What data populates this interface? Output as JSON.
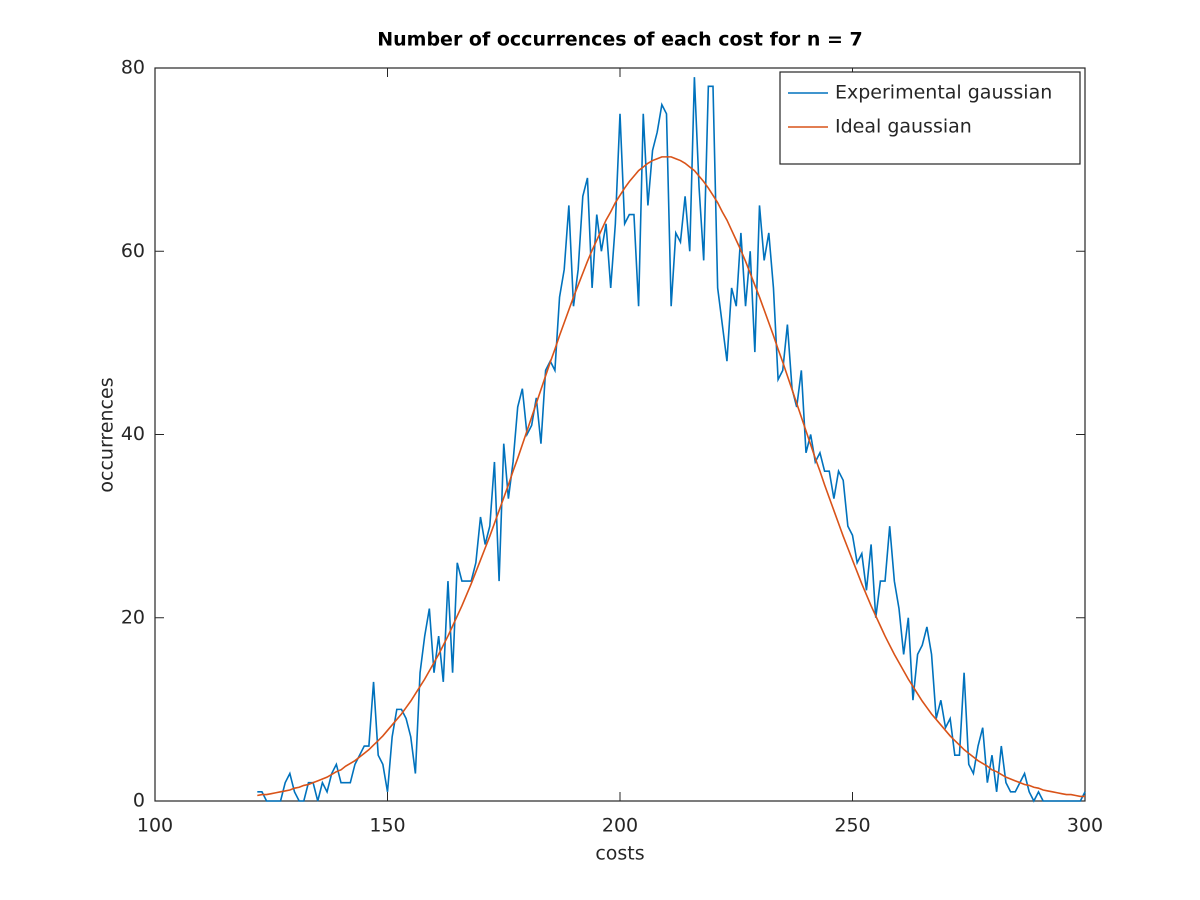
{
  "chart_data": {
    "type": "line",
    "title": "Number of occurrences of each cost for n = 7",
    "xlabel": "costs",
    "ylabel": "occurrences",
    "xlim": [
      100,
      300
    ],
    "ylim": [
      0,
      80
    ],
    "xticks": [
      100,
      150,
      200,
      250,
      300
    ],
    "yticks": [
      0,
      20,
      40,
      60,
      80
    ],
    "grid": false,
    "legend": "top-right",
    "x": [
      122,
      123,
      124,
      125,
      126,
      127,
      128,
      129,
      130,
      131,
      132,
      133,
      134,
      135,
      136,
      137,
      138,
      139,
      140,
      141,
      142,
      143,
      144,
      145,
      146,
      147,
      148,
      149,
      150,
      151,
      152,
      153,
      154,
      155,
      156,
      157,
      158,
      159,
      160,
      161,
      162,
      163,
      164,
      165,
      166,
      167,
      168,
      169,
      170,
      171,
      172,
      173,
      174,
      175,
      176,
      177,
      178,
      179,
      180,
      181,
      182,
      183,
      184,
      185,
      186,
      187,
      188,
      189,
      190,
      191,
      192,
      193,
      194,
      195,
      196,
      197,
      198,
      199,
      200,
      201,
      202,
      203,
      204,
      205,
      206,
      207,
      208,
      209,
      210,
      211,
      212,
      213,
      214,
      215,
      216,
      217,
      218,
      219,
      220,
      221,
      222,
      223,
      224,
      225,
      226,
      227,
      228,
      229,
      230,
      231,
      232,
      233,
      234,
      235,
      236,
      237,
      238,
      239,
      240,
      241,
      242,
      243,
      244,
      245,
      246,
      247,
      248,
      249,
      250,
      251,
      252,
      253,
      254,
      255,
      256,
      257,
      258,
      259,
      260,
      261,
      262,
      263,
      264,
      265,
      266,
      267,
      268,
      269,
      270,
      271,
      272,
      273,
      274,
      275,
      276,
      277,
      278,
      279,
      280,
      281,
      282,
      283,
      284,
      285,
      286,
      287,
      288,
      289,
      290,
      291,
      292,
      293,
      294,
      295,
      296,
      297,
      298,
      299,
      300
    ],
    "series": [
      {
        "name": "Experimental gaussian",
        "color": "#0072bd",
        "values": [
          1,
          1,
          0,
          0,
          0,
          0,
          2,
          3,
          1,
          0,
          0,
          2,
          2,
          0,
          2,
          1,
          3,
          4,
          2,
          2,
          2,
          4,
          5,
          6,
          6,
          13,
          5,
          4,
          1,
          7,
          10,
          10,
          9,
          7,
          3,
          14,
          18,
          21,
          14,
          18,
          13,
          24,
          14,
          26,
          24,
          24,
          24,
          26,
          31,
          28,
          30,
          37,
          24,
          39,
          33,
          37,
          43,
          45,
          40,
          41,
          44,
          39,
          47,
          48,
          47,
          55,
          58,
          65,
          54,
          58,
          66,
          68,
          56,
          64,
          60,
          63,
          56,
          63,
          75,
          63,
          64,
          64,
          54,
          75,
          65,
          71,
          73,
          76,
          75,
          54,
          62,
          61,
          66,
          60,
          79,
          67,
          59,
          78,
          78,
          56,
          52,
          48,
          56,
          54,
          62,
          54,
          60,
          49,
          65,
          59,
          62,
          56,
          46,
          47,
          52,
          45,
          43,
          47,
          38,
          40,
          37,
          38,
          36,
          36,
          33,
          36,
          35,
          30,
          29,
          26,
          27,
          23,
          28,
          20,
          24,
          24,
          30,
          24,
          21,
          16,
          20,
          11,
          16,
          17,
          19,
          16,
          9,
          11,
          8,
          9,
          5,
          5,
          14,
          4,
          3,
          6,
          8,
          2,
          5,
          1,
          6,
          2,
          1,
          1,
          2,
          3,
          1,
          0,
          1,
          0,
          0,
          0,
          0,
          0,
          0,
          0,
          0,
          0,
          1
        ]
      },
      {
        "name": "Ideal gaussian",
        "color": "#d95319",
        "values": [
          0.6,
          0.7,
          0.7,
          0.8,
          0.9,
          1.0,
          1.1,
          1.2,
          1.4,
          1.5,
          1.7,
          1.8,
          2.0,
          2.2,
          2.4,
          2.6,
          2.9,
          3.2,
          3.4,
          3.8,
          4.1,
          4.4,
          4.8,
          5.2,
          5.6,
          6.1,
          6.6,
          7.1,
          7.7,
          8.3,
          8.9,
          9.5,
          10.2,
          10.9,
          11.7,
          12.5,
          13.3,
          14.2,
          15.1,
          16.0,
          17.0,
          18.0,
          19.1,
          20.2,
          21.3,
          22.5,
          23.7,
          25.0,
          26.3,
          27.6,
          28.9,
          30.3,
          31.7,
          33.1,
          34.5,
          36.0,
          37.4,
          38.9,
          40.4,
          41.9,
          43.4,
          44.9,
          46.4,
          47.9,
          49.3,
          50.8,
          52.2,
          53.6,
          55.0,
          56.3,
          57.6,
          58.9,
          60.1,
          61.2,
          62.3,
          63.4,
          64.3,
          65.3,
          66.1,
          66.9,
          67.6,
          68.2,
          68.8,
          69.2,
          69.6,
          69.9,
          70.1,
          70.3,
          70.3,
          70.3,
          70.1,
          69.9,
          69.6,
          69.2,
          68.8,
          68.2,
          67.6,
          66.9,
          66.1,
          65.3,
          64.3,
          63.4,
          62.3,
          61.2,
          60.1,
          58.9,
          57.6,
          56.3,
          55.0,
          53.6,
          52.2,
          50.8,
          49.3,
          47.9,
          46.4,
          44.9,
          43.4,
          41.9,
          40.4,
          38.9,
          37.4,
          36.0,
          34.5,
          33.1,
          31.7,
          30.3,
          28.9,
          27.6,
          26.3,
          25.0,
          23.7,
          22.5,
          21.3,
          20.2,
          19.1,
          18.0,
          17.0,
          16.0,
          15.1,
          14.2,
          13.3,
          12.5,
          11.7,
          10.9,
          10.2,
          9.5,
          8.9,
          8.3,
          7.7,
          7.1,
          6.6,
          6.1,
          5.6,
          5.2,
          4.8,
          4.4,
          4.1,
          3.8,
          3.4,
          3.2,
          2.9,
          2.6,
          2.4,
          2.2,
          2.0,
          1.8,
          1.7,
          1.5,
          1.4,
          1.2,
          1.1,
          1.0,
          0.9,
          0.8,
          0.7,
          0.7,
          0.6,
          0.5,
          0.5
        ]
      }
    ]
  }
}
